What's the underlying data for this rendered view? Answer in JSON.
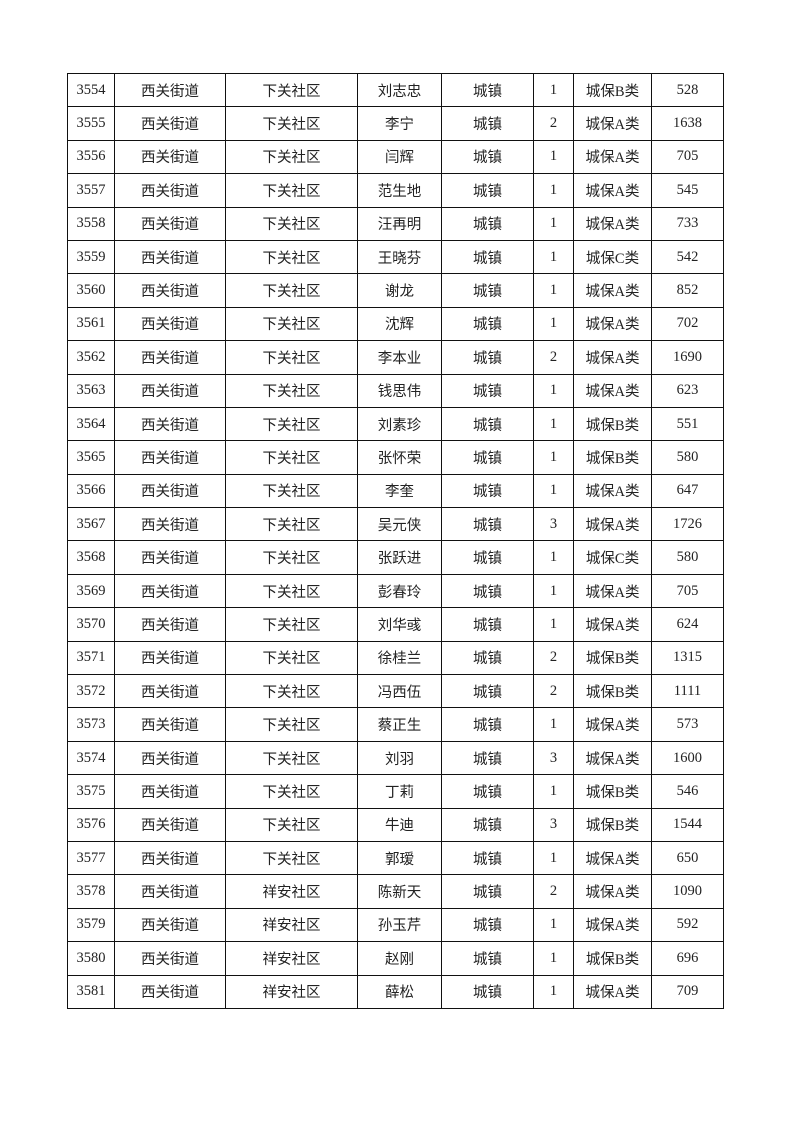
{
  "rows": [
    [
      "3554",
      "西关街道",
      "下关社区",
      "刘志忠",
      "城镇",
      "1",
      "城保B类",
      "528"
    ],
    [
      "3555",
      "西关街道",
      "下关社区",
      "李宁",
      "城镇",
      "2",
      "城保A类",
      "1638"
    ],
    [
      "3556",
      "西关街道",
      "下关社区",
      "闫辉",
      "城镇",
      "1",
      "城保A类",
      "705"
    ],
    [
      "3557",
      "西关街道",
      "下关社区",
      "范生地",
      "城镇",
      "1",
      "城保A类",
      "545"
    ],
    [
      "3558",
      "西关街道",
      "下关社区",
      "汪再明",
      "城镇",
      "1",
      "城保A类",
      "733"
    ],
    [
      "3559",
      "西关街道",
      "下关社区",
      "王晓芬",
      "城镇",
      "1",
      "城保C类",
      "542"
    ],
    [
      "3560",
      "西关街道",
      "下关社区",
      "谢龙",
      "城镇",
      "1",
      "城保A类",
      "852"
    ],
    [
      "3561",
      "西关街道",
      "下关社区",
      "沈辉",
      "城镇",
      "1",
      "城保A类",
      "702"
    ],
    [
      "3562",
      "西关街道",
      "下关社区",
      "李本业",
      "城镇",
      "2",
      "城保A类",
      "1690"
    ],
    [
      "3563",
      "西关街道",
      "下关社区",
      "钱思伟",
      "城镇",
      "1",
      "城保A类",
      "623"
    ],
    [
      "3564",
      "西关街道",
      "下关社区",
      "刘素珍",
      "城镇",
      "1",
      "城保B类",
      "551"
    ],
    [
      "3565",
      "西关街道",
      "下关社区",
      "张怀荣",
      "城镇",
      "1",
      "城保B类",
      "580"
    ],
    [
      "3566",
      "西关街道",
      "下关社区",
      "李奎",
      "城镇",
      "1",
      "城保A类",
      "647"
    ],
    [
      "3567",
      "西关街道",
      "下关社区",
      "吴元侠",
      "城镇",
      "3",
      "城保A类",
      "1726"
    ],
    [
      "3568",
      "西关街道",
      "下关社区",
      "张跃进",
      "城镇",
      "1",
      "城保C类",
      "580"
    ],
    [
      "3569",
      "西关街道",
      "下关社区",
      "彭春玲",
      "城镇",
      "1",
      "城保A类",
      "705"
    ],
    [
      "3570",
      "西关街道",
      "下关社区",
      "刘华彧",
      "城镇",
      "1",
      "城保A类",
      "624"
    ],
    [
      "3571",
      "西关街道",
      "下关社区",
      "徐桂兰",
      "城镇",
      "2",
      "城保B类",
      "1315"
    ],
    [
      "3572",
      "西关街道",
      "下关社区",
      "冯西伍",
      "城镇",
      "2",
      "城保B类",
      "1111"
    ],
    [
      "3573",
      "西关街道",
      "下关社区",
      "蔡正生",
      "城镇",
      "1",
      "城保A类",
      "573"
    ],
    [
      "3574",
      "西关街道",
      "下关社区",
      "刘羽",
      "城镇",
      "3",
      "城保A类",
      "1600"
    ],
    [
      "3575",
      "西关街道",
      "下关社区",
      "丁莉",
      "城镇",
      "1",
      "城保B类",
      "546"
    ],
    [
      "3576",
      "西关街道",
      "下关社区",
      "牛迪",
      "城镇",
      "3",
      "城保B类",
      "1544"
    ],
    [
      "3577",
      "西关街道",
      "下关社区",
      "郭瑷",
      "城镇",
      "1",
      "城保A类",
      "650"
    ],
    [
      "3578",
      "西关街道",
      "祥安社区",
      "陈新天",
      "城镇",
      "2",
      "城保A类",
      "1090"
    ],
    [
      "3579",
      "西关街道",
      "祥安社区",
      "孙玉芹",
      "城镇",
      "1",
      "城保A类",
      "592"
    ],
    [
      "3580",
      "西关街道",
      "祥安社区",
      "赵刚",
      "城镇",
      "1",
      "城保B类",
      "696"
    ],
    [
      "3581",
      "西关街道",
      "祥安社区",
      "薛松",
      "城镇",
      "1",
      "城保A类",
      "709"
    ]
  ]
}
